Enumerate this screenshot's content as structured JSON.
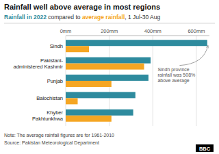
{
  "chart_data": {
    "type": "bar",
    "orientation": "horizontal",
    "title": "Rainfall well above average in most regions",
    "subtitle": "Rainfall in 2022 compared to average rainfall, 1 Jul-30 Aug",
    "categories": [
      "Sindh",
      "Pakistani-\nadministered Kashmir",
      "Punjab",
      "Balochistan",
      "Khyber\nPakhtunkhwa"
    ],
    "series": [
      {
        "name": "Rainfall in 2022",
        "color": "#2E8B9E",
        "values": [
          650,
          390,
          380,
          320,
          310
        ]
      },
      {
        "name": "average rainfall",
        "color": "#F5A623",
        "values": [
          107,
          360,
          210,
          55,
          210
        ]
      }
    ],
    "xlim": [
      0,
      660
    ],
    "xticks": [
      {
        "value": 0,
        "label": "0mm"
      },
      {
        "value": 200,
        "label": "200mm"
      },
      {
        "value": 400,
        "label": "400mm"
      },
      {
        "value": 600,
        "label": "600mm"
      }
    ],
    "grid": true,
    "annotation": "Sindh province\nrainfall was 508%\nabove average",
    "note": "Note: The average rainfall figures are for 1961-2010",
    "source": "Source: Pakistan Meteorological Department",
    "credit": "BBC"
  }
}
